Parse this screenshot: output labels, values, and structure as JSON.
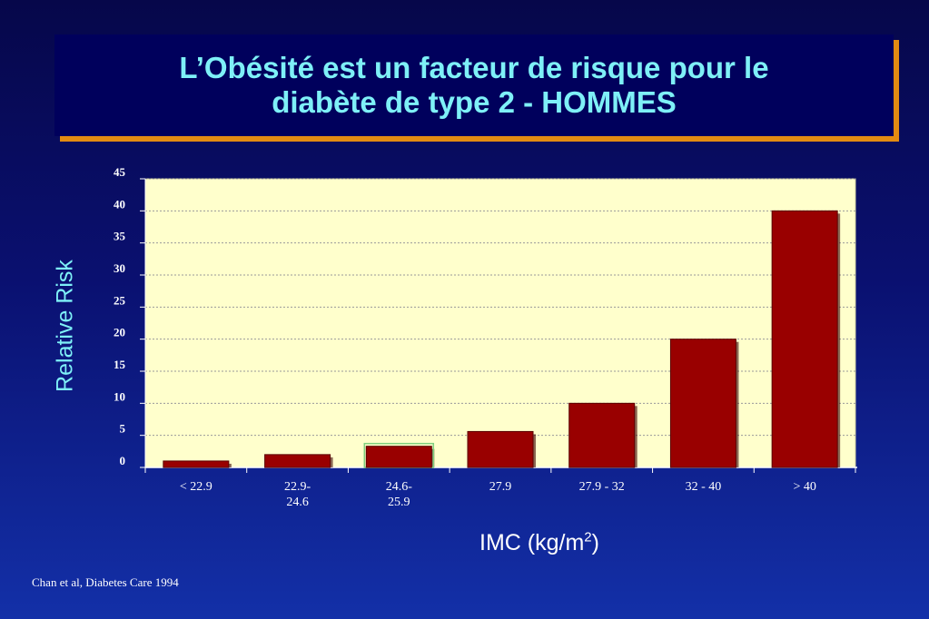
{
  "slide": {
    "title_line1": "L’Obésité est un facteur de risque pour le",
    "title_line2": "diabète de type 2 - HOMMES",
    "source": "Chan et al, Diabetes Care 1994"
  },
  "chart_data": {
    "type": "bar",
    "categories": [
      "< 22.9",
      "22.9-\n24.6",
      "24.6-\n25.9",
      "27.9",
      "27.9 - 32",
      "32 - 40",
      "> 40"
    ],
    "values": [
      1.0,
      2.0,
      3.3,
      5.6,
      10.0,
      20.0,
      40.0
    ],
    "ylabel": "Relative Risk",
    "xlabel": "IMC (kg/m",
    "xlabel_sup": "2",
    "xlabel_end": ")",
    "ylim": [
      0,
      45
    ],
    "yticks": [
      0,
      5,
      10,
      15,
      20,
      25,
      30,
      35,
      40,
      45
    ],
    "grid": true,
    "colors": {
      "bar": "#990000",
      "plot_bg": "#ffffcc",
      "grid": "#9a9a9a",
      "highlight_outline": "#7fcf7f"
    }
  }
}
